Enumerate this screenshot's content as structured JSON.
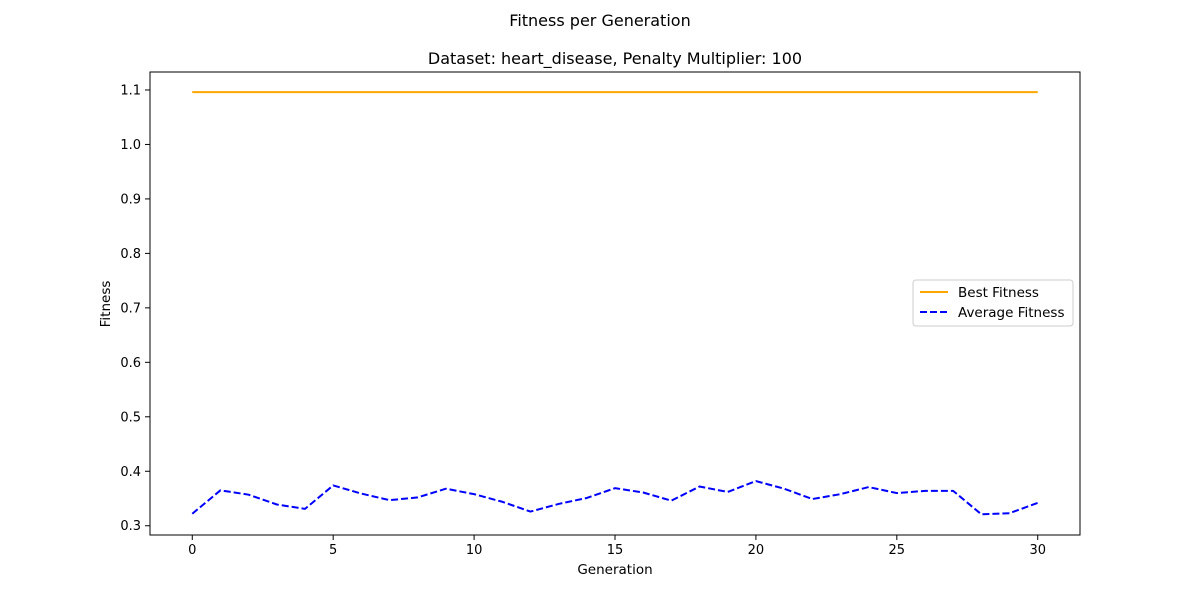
{
  "chart_data": {
    "type": "line",
    "suptitle": "Fitness per Generation",
    "title": "Dataset: heart_disease, Penalty Multiplier: 100",
    "xlabel": "Generation",
    "ylabel": "Fitness",
    "xlim": [
      -1.5,
      31.5
    ],
    "ylim": [
      0.283,
      1.133
    ],
    "x": [
      0,
      1,
      2,
      3,
      4,
      5,
      6,
      7,
      8,
      9,
      10,
      11,
      12,
      13,
      14,
      15,
      16,
      17,
      18,
      19,
      20,
      21,
      22,
      23,
      24,
      25,
      26,
      27,
      28,
      29,
      30
    ],
    "xticks": [
      0,
      5,
      10,
      15,
      20,
      25,
      30
    ],
    "yticks": [
      0.3,
      0.4,
      0.5,
      0.6,
      0.7,
      0.8,
      0.9,
      1.0,
      1.1
    ],
    "ytick_labels": [
      "0.3",
      "0.4",
      "0.5",
      "0.6",
      "0.7",
      "0.8",
      "0.9",
      "1.0",
      "1.1"
    ],
    "grid": false,
    "legend_position": "center-right",
    "series": [
      {
        "name": "Best Fitness",
        "color": "#ffa500",
        "style": "solid",
        "values": [
          1.096,
          1.096,
          1.096,
          1.096,
          1.096,
          1.096,
          1.096,
          1.096,
          1.096,
          1.096,
          1.096,
          1.096,
          1.096,
          1.096,
          1.096,
          1.096,
          1.096,
          1.096,
          1.096,
          1.096,
          1.096,
          1.096,
          1.096,
          1.096,
          1.096,
          1.096,
          1.096,
          1.096,
          1.096,
          1.096,
          1.096
        ]
      },
      {
        "name": "Average Fitness",
        "color": "#0000ff",
        "style": "dashed",
        "values": [
          0.322,
          0.365,
          0.357,
          0.339,
          0.331,
          0.374,
          0.359,
          0.347,
          0.352,
          0.368,
          0.358,
          0.344,
          0.326,
          0.34,
          0.351,
          0.369,
          0.361,
          0.346,
          0.372,
          0.362,
          0.382,
          0.368,
          0.349,
          0.358,
          0.371,
          0.36,
          0.364,
          0.364,
          0.321,
          0.323,
          0.342
        ]
      }
    ]
  }
}
